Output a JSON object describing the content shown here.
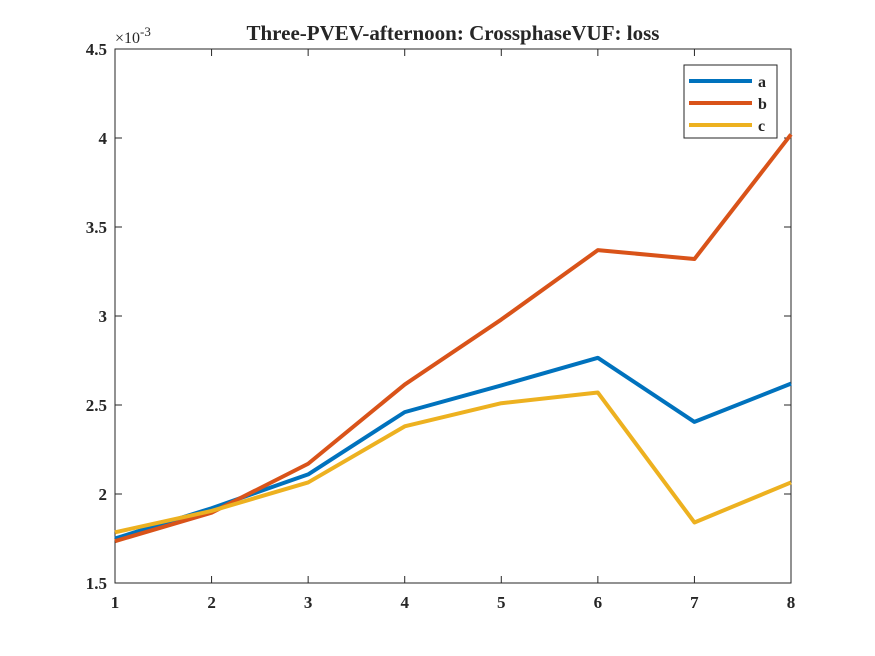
{
  "chart_data": {
    "type": "line",
    "title": "Three-PVEV-afternoon: CrossphaseVUF: loss",
    "xlabel": "",
    "ylabel": "",
    "exponent_label": "×10",
    "exponent_power": "-3",
    "x": [
      1,
      2,
      3,
      4,
      5,
      6,
      7,
      8
    ],
    "xlim": [
      1,
      8
    ],
    "ylim": [
      1.5,
      4.5
    ],
    "x_ticks": [
      1,
      2,
      3,
      4,
      5,
      6,
      7,
      8
    ],
    "y_ticks": [
      1.5,
      2,
      2.5,
      3,
      3.5,
      4,
      4.5
    ],
    "y_tick_labels": [
      "1.5",
      "2",
      "2.5",
      "3",
      "3.5",
      "4",
      "4.5"
    ],
    "grid": false,
    "legend_position": "top-right",
    "series": [
      {
        "name": "a",
        "color": "#0072BD",
        "values": [
          1.75,
          1.92,
          2.11,
          2.46,
          2.61,
          2.765,
          2.405,
          2.62
        ]
      },
      {
        "name": "b",
        "color": "#D95319",
        "values": [
          1.735,
          1.895,
          2.17,
          2.615,
          2.98,
          3.37,
          3.32,
          4.02
        ]
      },
      {
        "name": "c",
        "color": "#EDB120",
        "values": [
          1.785,
          1.905,
          2.065,
          2.38,
          2.51,
          2.57,
          1.84,
          2.065
        ]
      }
    ]
  }
}
